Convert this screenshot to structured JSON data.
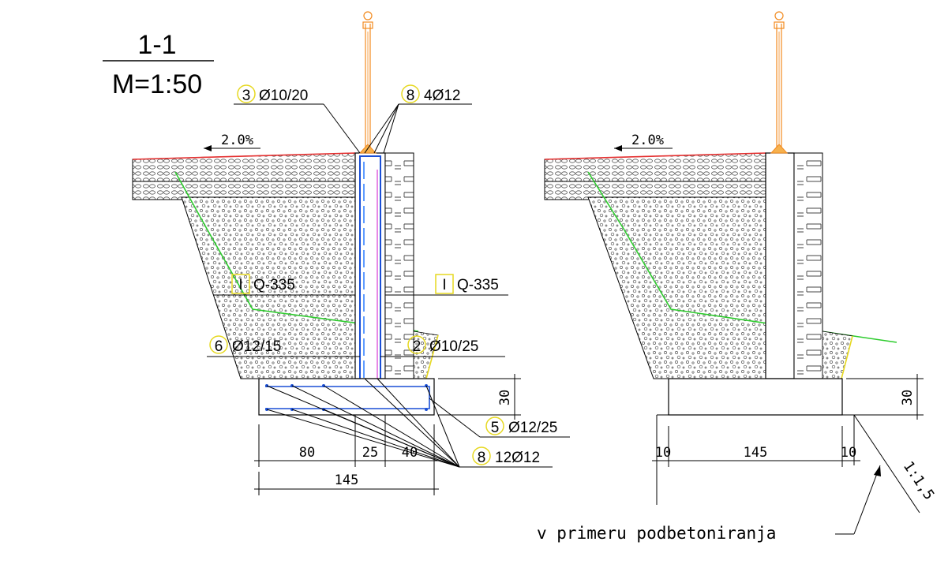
{
  "title": {
    "section": "1-1",
    "scale": "M=1:50"
  },
  "slope_labels": {
    "left": "2.0%",
    "right": "2.0%"
  },
  "callouts": [
    {
      "id": "c3",
      "mark": "3",
      "text": "Ø10/20"
    },
    {
      "id": "c8top",
      "mark": "8",
      "text": "4Ø12"
    },
    {
      "id": "c6",
      "mark": "6",
      "text": "Ø12/15"
    },
    {
      "id": "c2",
      "mark": "2",
      "text": "Ø10/25"
    },
    {
      "id": "c5",
      "mark": "5",
      "text": "Ø12/25"
    },
    {
      "id": "c8bot",
      "mark": "8",
      "text": "12Ø12"
    }
  ],
  "mesh_labels": [
    {
      "id": "m1",
      "mark": "I",
      "text": "Q-335"
    },
    {
      "id": "m2",
      "mark": "I",
      "text": "Q-335"
    }
  ],
  "dimensions": {
    "left_height": "30",
    "left_bottom": [
      "80",
      "25",
      "40"
    ],
    "left_total": "145",
    "right_height": "30",
    "right_bottom": [
      "10",
      "145",
      "10"
    ],
    "right_slope": "1:1,5"
  },
  "note": "v primeru podbetoniranja"
}
